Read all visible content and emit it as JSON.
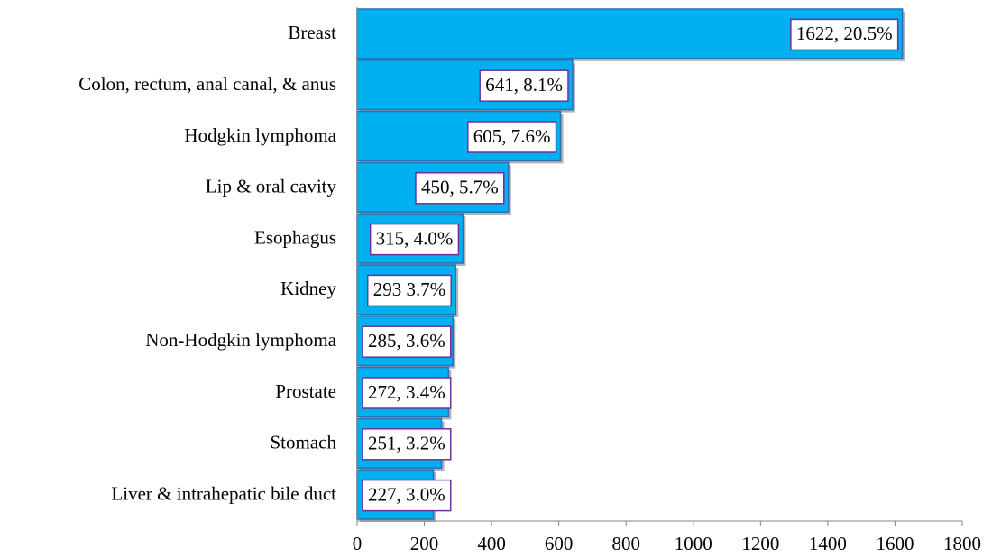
{
  "chart_data": {
    "type": "hbar",
    "categories": [
      "Breast",
      "Colon, rectum, anal canal, & anus",
      "Hodgkin lymphoma",
      "Lip & oral cavity",
      "Esophagus",
      "Kidney",
      "Non-Hodgkin lymphoma",
      "Prostate",
      "Stomach",
      "Liver & intrahepatic bile duct"
    ],
    "values": [
      1622,
      641,
      605,
      450,
      315,
      293,
      285,
      272,
      251,
      227
    ],
    "value_labels": [
      "1622, 20.5%",
      "641, 8.1%",
      "605, 7.6%",
      "450, 5.7%",
      "315, 4.0%",
      "293 3.7%",
      "285, 3.6%",
      "272, 3.4%",
      "251, 3.2%",
      "227, 3.0%"
    ],
    "color": "#00b0f0",
    "xlim": [
      0,
      1800
    ],
    "xticks": [
      0,
      200,
      400,
      600,
      800,
      1000,
      1200,
      1400,
      1600,
      1800
    ]
  }
}
